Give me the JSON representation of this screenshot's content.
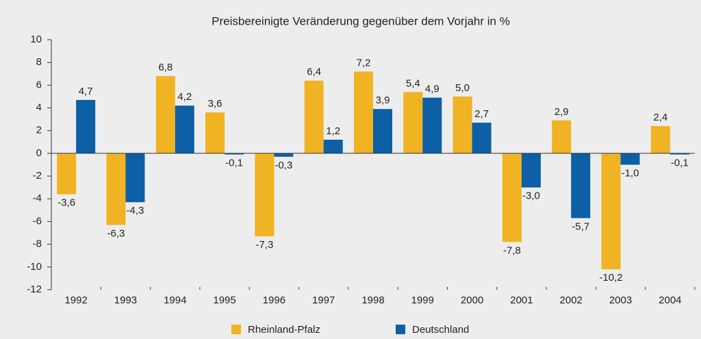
{
  "chart_data": {
    "type": "bar",
    "title": "Preisbereinigte Veränderung gegenüber dem Vorjahr in %",
    "categories": [
      "1992",
      "1993",
      "1994",
      "1995",
      "1996",
      "1997",
      "1998",
      "1999",
      "2000",
      "2001",
      "2002",
      "2003",
      "2004"
    ],
    "series": [
      {
        "name": "Rheinland-Pfalz",
        "color": "#f0b323",
        "values": [
          -3.6,
          -6.3,
          6.8,
          3.6,
          -7.3,
          6.4,
          7.2,
          5.4,
          5.0,
          -7.8,
          2.9,
          -10.2,
          2.4
        ],
        "value_labels": [
          "-3,6",
          "-6,3",
          "6,8",
          "3,6",
          "-7,3",
          "6,4",
          "7,2",
          "5,4",
          "5,0",
          "-7,8",
          "2,9",
          "-10,2",
          "2,4"
        ]
      },
      {
        "name": "Deutschland",
        "color": "#0d5fa6",
        "values": [
          4.7,
          -4.3,
          4.2,
          -0.1,
          -0.3,
          1.2,
          3.9,
          4.9,
          2.7,
          -3.0,
          -5.7,
          -1.0,
          -0.1
        ],
        "value_labels": [
          "4,7",
          "-4,3",
          "4,2",
          "-0,1",
          "-0,3",
          "1,2",
          "3,9",
          "4,9",
          "2,7",
          "-3,0",
          "-5,7",
          "-1,0",
          "-0,1"
        ]
      }
    ],
    "ylim": [
      -12,
      10
    ],
    "yticks": [
      -12,
      -10,
      -8,
      -6,
      -4,
      -2,
      0,
      2,
      4,
      6,
      8,
      10
    ],
    "legend": "bottom"
  }
}
